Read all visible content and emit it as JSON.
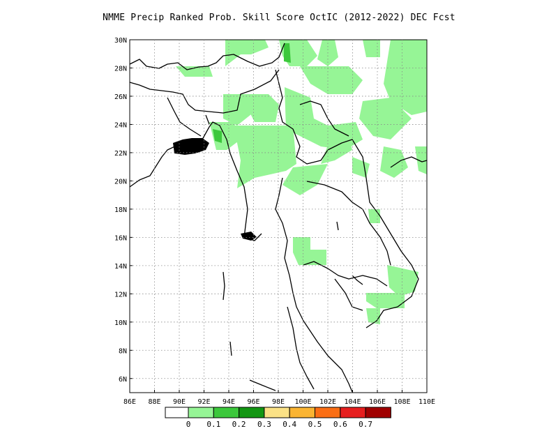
{
  "title": "NMME Precip Ranked Prob. Skill Score OctIC (2012-2022) DEC Fcst",
  "map": {
    "lon_range": [
      86,
      110
    ],
    "lat_range": [
      5,
      30
    ],
    "lon_ticks": [
      "86E",
      "88E",
      "90E",
      "92E",
      "94E",
      "96E",
      "98E",
      "100E",
      "102E",
      "104E",
      "106E",
      "108E",
      "110E"
    ],
    "lat_ticks": [
      "6N",
      "8N",
      "10N",
      "12N",
      "14N",
      "16N",
      "18N",
      "20N",
      "22N",
      "24N",
      "26N",
      "28N",
      "30N"
    ],
    "gridlines": "dotted"
  },
  "colorbar": {
    "labels": [
      "0",
      "0.1",
      "0.2",
      "0.3",
      "0.4",
      "0.5",
      "0.6",
      "0.7"
    ],
    "colors": [
      "#ffffff",
      "#96f596",
      "#3cc83c",
      "#129612",
      "#fae186",
      "#fab432",
      "#fa6e14",
      "#e61e1e",
      "#a00000"
    ]
  },
  "colors": {
    "skill_light_green": "#96f596",
    "skill_mid_green": "#3cc83c",
    "coast": "#000000"
  }
}
